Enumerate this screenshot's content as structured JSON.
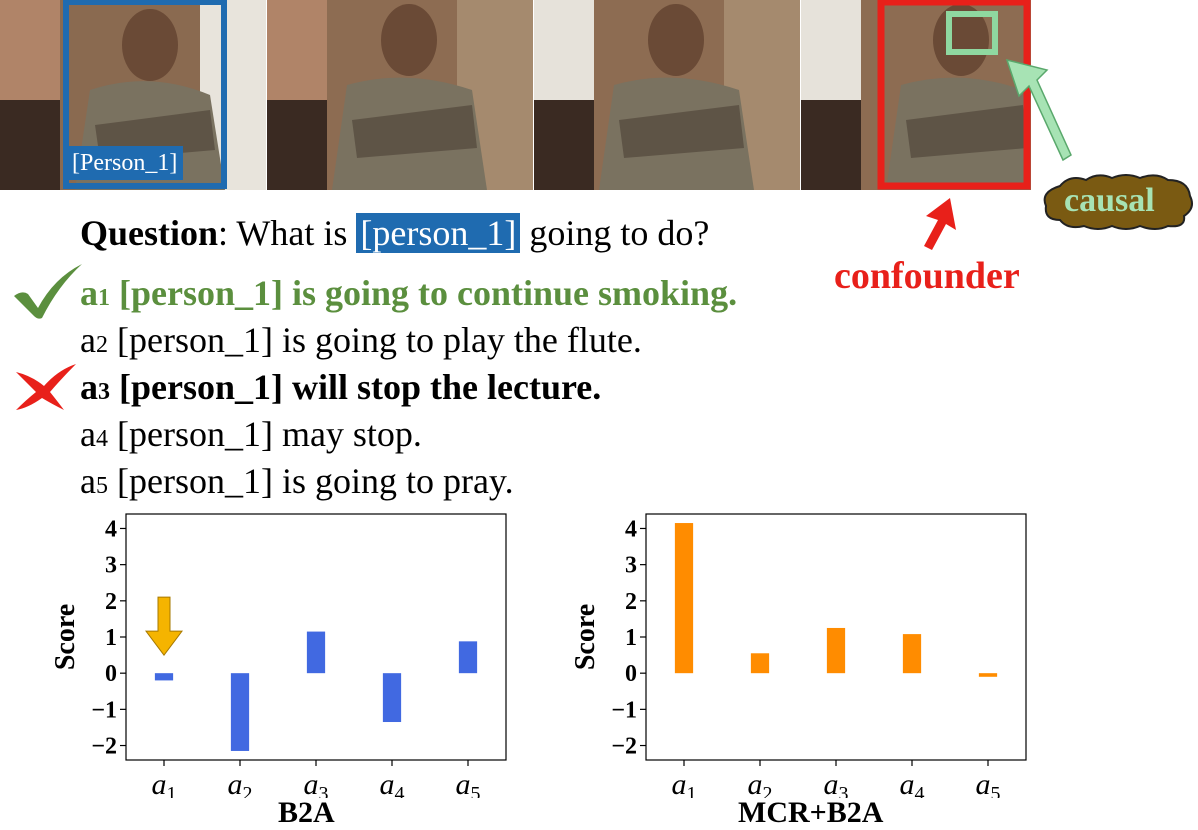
{
  "frames": {
    "person_label": "[Person_1]"
  },
  "question": {
    "label": "Question",
    "before": ": What is ",
    "tag": "[person_1]",
    "after": " going to do?"
  },
  "answers": [
    {
      "prefix": "a",
      "sub": "1",
      "text": " [person_1] is going to continue smoking."
    },
    {
      "prefix": "a",
      "sub": "2",
      "text": " [person_1] is going to play the flute."
    },
    {
      "prefix": "a",
      "sub": "3",
      "text": " [person_1] will stop the lecture."
    },
    {
      "prefix": "a",
      "sub": "4",
      "text": " [person_1] may stop."
    },
    {
      "prefix": "a",
      "sub": "5",
      "text": " [person_1] is going to pray."
    }
  ],
  "annotations": {
    "confounder": "confounder",
    "causal": "causal"
  },
  "colors": {
    "correct": "#5b8f3e",
    "person_tag": "#1f6bb0",
    "confounder": "#e8201a",
    "causal": "#a7e3b4",
    "b2a_bar": "#4169e1",
    "mcr_bar": "#ff8c00",
    "arrow": "#f5b400"
  },
  "chart_data": [
    {
      "type": "bar",
      "title": "B2A",
      "ylabel": "Score",
      "categories": [
        "a1",
        "a2",
        "a3",
        "a4",
        "a5"
      ],
      "category_labels": [
        {
          "base": "a",
          "sub": "1"
        },
        {
          "base": "a",
          "sub": "2"
        },
        {
          "base": "a",
          "sub": "3"
        },
        {
          "base": "a",
          "sub": "4"
        },
        {
          "base": "a",
          "sub": "5"
        }
      ],
      "values": [
        -0.2,
        -2.15,
        1.15,
        -1.35,
        0.88
      ],
      "ylim": [
        -2.4,
        4.4
      ],
      "yticks": [
        "4",
        "3",
        "2",
        "1",
        "0",
        "−1",
        "−2"
      ],
      "ytick_values": [
        4,
        3,
        2,
        1,
        0,
        -1,
        -2
      ],
      "color": "#4169e1",
      "highlight_index": 0
    },
    {
      "type": "bar",
      "title": "MCR+B2A",
      "ylabel": "Score",
      "categories": [
        "a1",
        "a2",
        "a3",
        "a4",
        "a5"
      ],
      "category_labels": [
        {
          "base": "a",
          "sub": "1"
        },
        {
          "base": "a",
          "sub": "2"
        },
        {
          "base": "a",
          "sub": "3"
        },
        {
          "base": "a",
          "sub": "4"
        },
        {
          "base": "a",
          "sub": "5"
        }
      ],
      "values": [
        4.15,
        0.55,
        1.25,
        1.08,
        -0.1
      ],
      "ylim": [
        -2.4,
        4.4
      ],
      "yticks": [
        "4",
        "3",
        "2",
        "1",
        "0",
        "−1",
        "−2"
      ],
      "ytick_values": [
        4,
        3,
        2,
        1,
        0,
        -1,
        -2
      ],
      "color": "#ff8c00",
      "highlight_index": 0
    }
  ]
}
